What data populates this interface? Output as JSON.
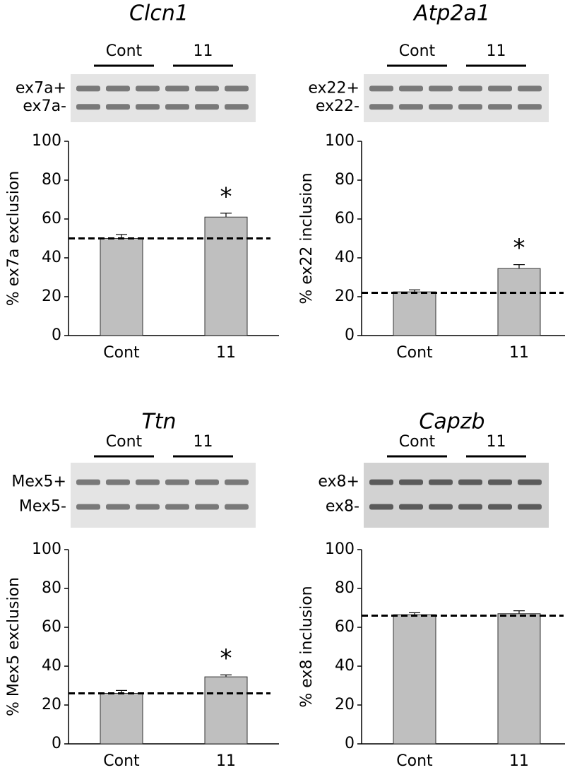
{
  "chart_data": [
    {
      "type": "bar",
      "title": "Clcn1",
      "gel": {
        "groups": [
          "Cont",
          "11"
        ],
        "bands": [
          "ex7a+",
          "ex7a-"
        ]
      },
      "y_label": "% ex7a exclusion",
      "categories": [
        "Cont",
        "11"
      ],
      "values": [
        50,
        61
      ],
      "errors": [
        2,
        2
      ],
      "reference_line": 50,
      "significance": [
        null,
        "*"
      ],
      "ylim": [
        0,
        100
      ],
      "yticks": [
        0,
        20,
        40,
        60,
        80,
        100
      ],
      "color": "#bfbfbf"
    },
    {
      "type": "bar",
      "title": "Atp2a1",
      "gel": {
        "groups": [
          "Cont",
          "11"
        ],
        "bands": [
          "ex22+",
          "ex22-"
        ]
      },
      "y_label": "% ex22 inclusion",
      "categories": [
        "Cont",
        "11"
      ],
      "values": [
        22.5,
        34.5
      ],
      "errors": [
        1,
        2
      ],
      "reference_line": 22,
      "significance": [
        null,
        "*"
      ],
      "ylim": [
        0,
        100
      ],
      "yticks": [
        0,
        20,
        40,
        60,
        80,
        100
      ],
      "color": "#bfbfbf"
    },
    {
      "type": "bar",
      "title": "Ttn",
      "gel": {
        "groups": [
          "Cont",
          "11"
        ],
        "bands": [
          "Mex5+",
          "Mex5-"
        ]
      },
      "y_label": "% Mex5 exclusion",
      "categories": [
        "Cont",
        "11"
      ],
      "values": [
        26,
        34.5
      ],
      "errors": [
        1.5,
        1
      ],
      "reference_line": 26,
      "significance": [
        null,
        "*"
      ],
      "ylim": [
        0,
        100
      ],
      "yticks": [
        0,
        20,
        40,
        60,
        80,
        100
      ],
      "color": "#bfbfbf"
    },
    {
      "type": "bar",
      "title": "Capzb",
      "gel": {
        "groups": [
          "Cont",
          "11"
        ],
        "bands": [
          "ex8+",
          "ex8-"
        ]
      },
      "y_label": "% ex8 inclusion",
      "categories": [
        "Cont",
        "11"
      ],
      "values": [
        66.5,
        67
      ],
      "errors": [
        1,
        1.5
      ],
      "reference_line": 66,
      "significance": [
        null,
        null
      ],
      "ylim": [
        0,
        100
      ],
      "yticks": [
        0,
        20,
        40,
        60,
        80,
        100
      ],
      "color": "#bfbfbf"
    }
  ]
}
